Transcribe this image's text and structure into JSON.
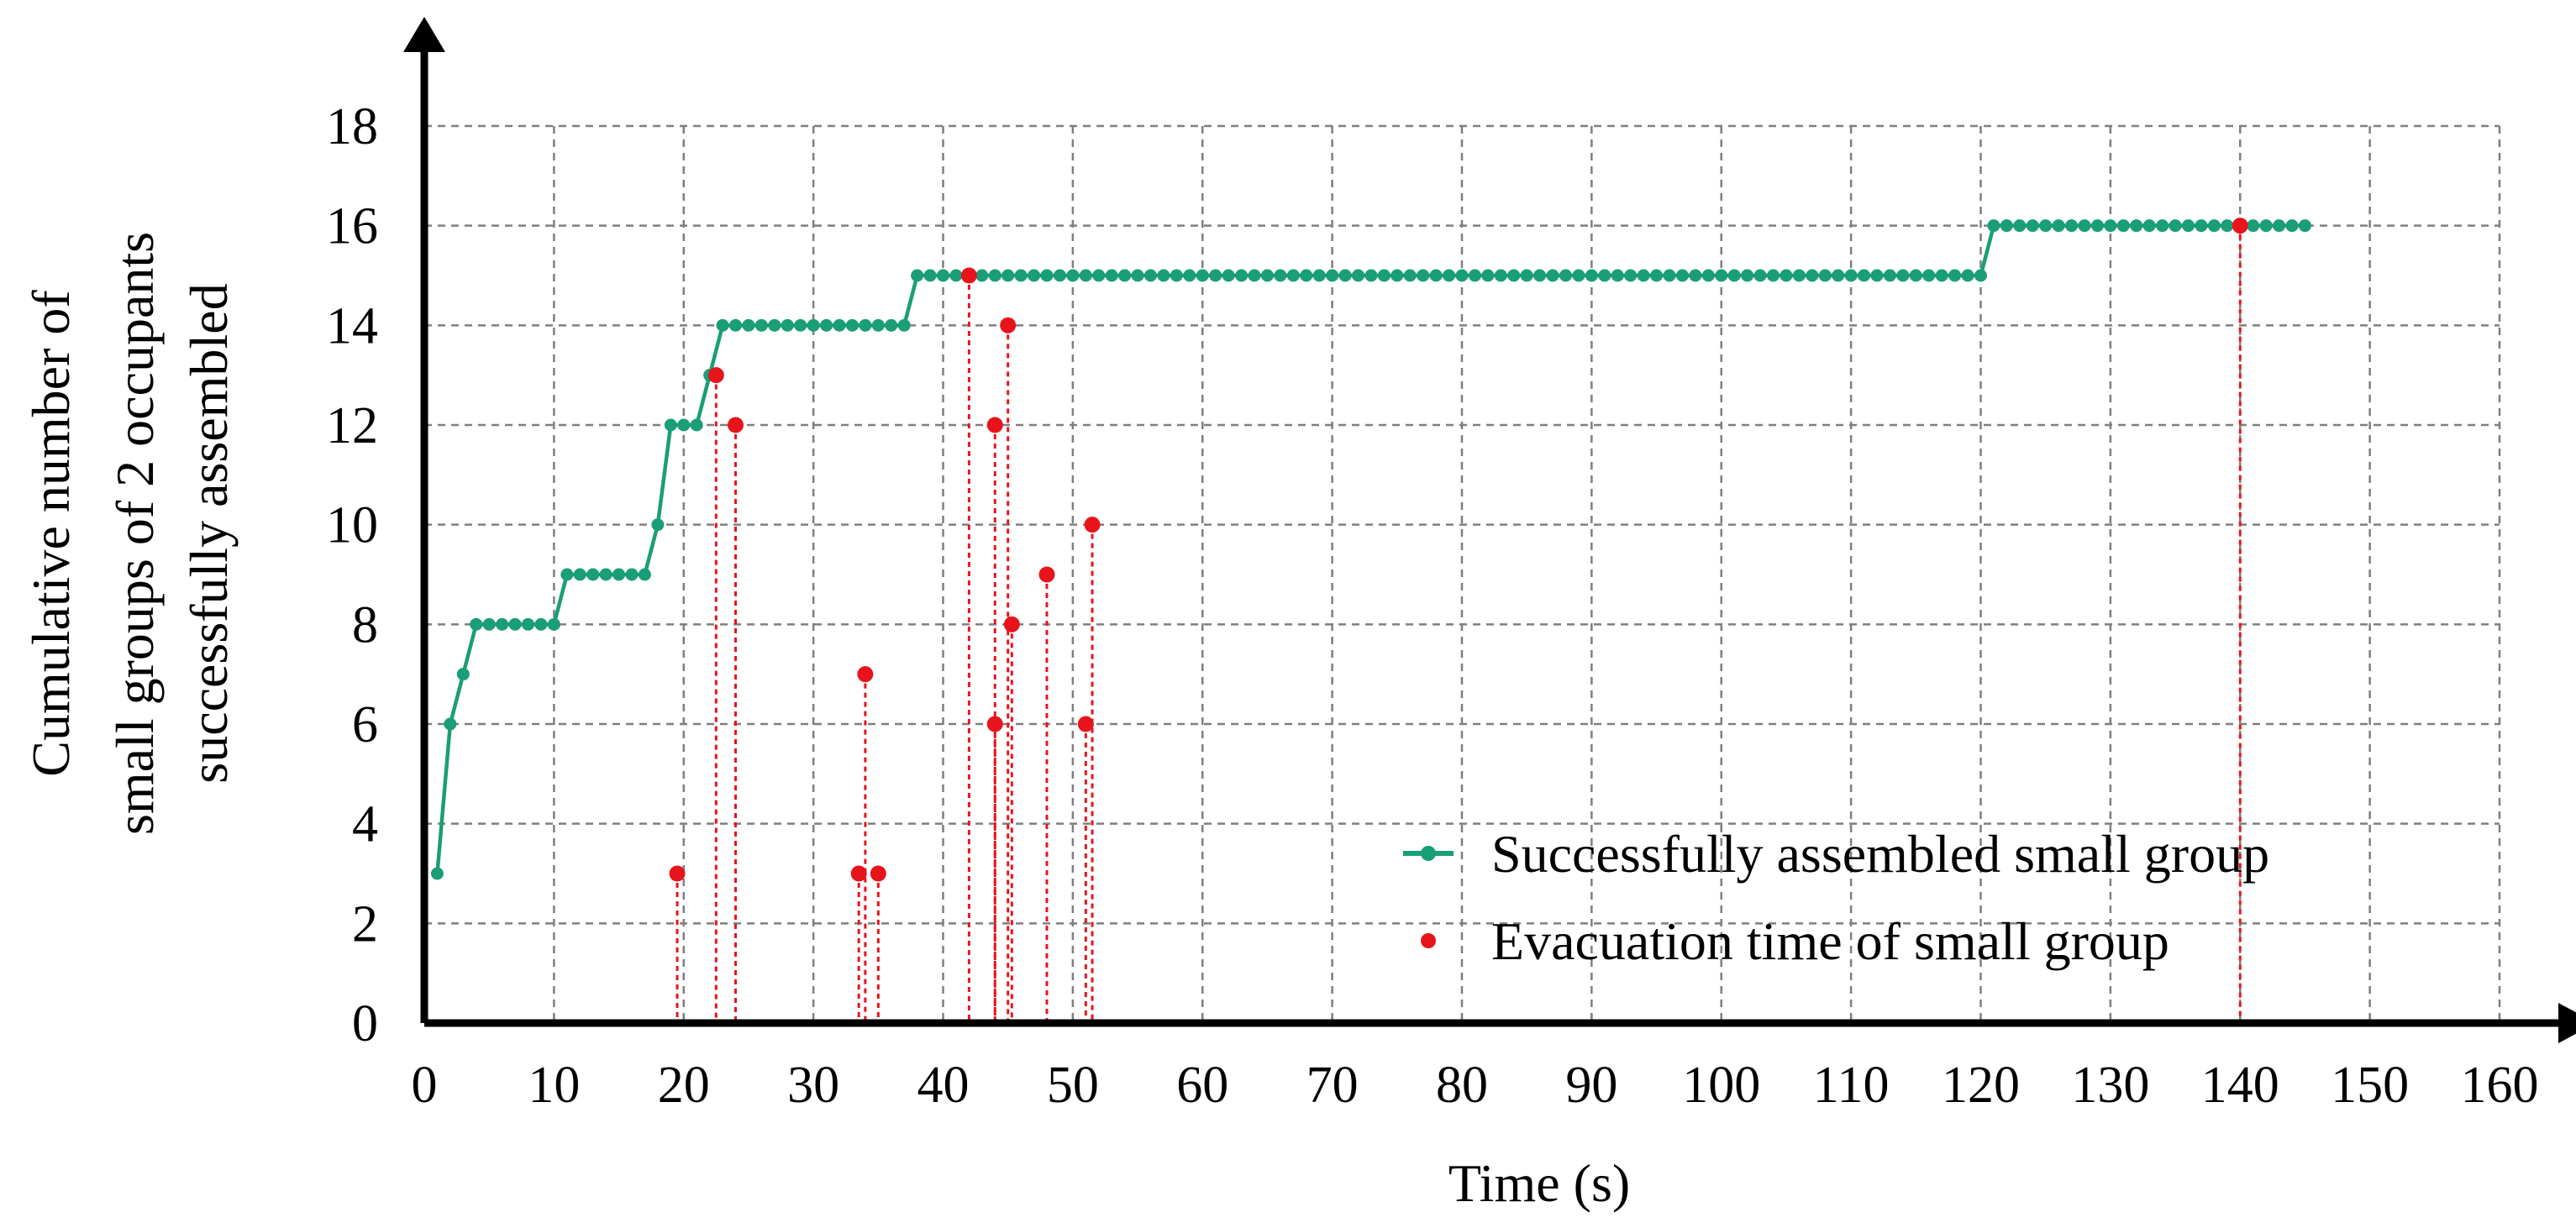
{
  "chart_data": {
    "type": "line",
    "title": "",
    "xlabel": "Time (s)",
    "ylabel_lines": [
      "Cumulative number of",
      "small groups of 2 occupants",
      "successfully assembled"
    ],
    "xlim": [
      0,
      160
    ],
    "ylim": [
      0,
      18
    ],
    "xticks": [
      0,
      10,
      20,
      30,
      40,
      50,
      60,
      70,
      80,
      90,
      100,
      110,
      120,
      130,
      140,
      150,
      160
    ],
    "yticks": [
      0,
      2,
      4,
      6,
      8,
      10,
      12,
      14,
      16,
      18
    ],
    "grid": true,
    "legend_position": "bottom-right",
    "colors": {
      "assembled": "#1a9e77",
      "evacuation": "#e8141c",
      "axis": "#000000",
      "grid": "#7f7f7f"
    },
    "series": [
      {
        "name": "Successfully assembled small group",
        "kind": "step-line-markers",
        "x": [
          1,
          2,
          3,
          4,
          5,
          6,
          7,
          8,
          9,
          10,
          11,
          12,
          13,
          14,
          15,
          16,
          17,
          18,
          19,
          20,
          21,
          22,
          23,
          24,
          25,
          26,
          27,
          28,
          29,
          30,
          31,
          32,
          33,
          34,
          35,
          36,
          37,
          38,
          39,
          40,
          41,
          42,
          43,
          44,
          45,
          46,
          47,
          48,
          49,
          50,
          51,
          52,
          53,
          54,
          55,
          56,
          57,
          58,
          59,
          60,
          61,
          62,
          63,
          64,
          65,
          66,
          67,
          68,
          69,
          70,
          71,
          72,
          73,
          74,
          75,
          76,
          77,
          78,
          79,
          80,
          81,
          82,
          83,
          84,
          85,
          86,
          87,
          88,
          89,
          90,
          91,
          92,
          93,
          94,
          95,
          96,
          97,
          98,
          99,
          100,
          101,
          102,
          103,
          104,
          105,
          106,
          107,
          108,
          109,
          110,
          111,
          112,
          113,
          114,
          115,
          116,
          117,
          118,
          119,
          120,
          121,
          122,
          123,
          124,
          125,
          126,
          127,
          128,
          129,
          130,
          131,
          132,
          133,
          134,
          135,
          136,
          137,
          138,
          139,
          140,
          141,
          142,
          143,
          144,
          145
        ],
        "y": [
          3,
          6,
          7,
          8,
          8,
          8,
          8,
          8,
          8,
          8,
          9,
          9,
          9,
          9,
          9,
          9,
          9,
          10,
          12,
          12,
          12,
          13,
          14,
          14,
          14,
          14,
          14,
          14,
          14,
          14,
          14,
          14,
          14,
          14,
          14,
          14,
          14,
          15,
          15,
          15,
          15,
          15,
          15,
          15,
          15,
          15,
          15,
          15,
          15,
          15,
          15,
          15,
          15,
          15,
          15,
          15,
          15,
          15,
          15,
          15,
          15,
          15,
          15,
          15,
          15,
          15,
          15,
          15,
          15,
          15,
          15,
          15,
          15,
          15,
          15,
          15,
          15,
          15,
          15,
          15,
          15,
          15,
          15,
          15,
          15,
          15,
          15,
          15,
          15,
          15,
          15,
          15,
          15,
          15,
          15,
          15,
          15,
          15,
          15,
          15,
          15,
          15,
          15,
          15,
          15,
          15,
          15,
          15,
          15,
          15,
          15,
          15,
          15,
          15,
          15,
          15,
          15,
          15,
          15,
          15,
          16,
          16,
          16,
          16,
          16,
          16,
          16,
          16,
          16,
          16,
          16,
          16,
          16,
          16,
          16,
          16,
          16,
          16,
          16,
          16,
          16,
          16,
          16,
          16,
          16
        ]
      },
      {
        "name": "Evacuation time of small group",
        "kind": "scatter-with-droplines",
        "points": [
          {
            "x": 19.5,
            "y": 3
          },
          {
            "x": 22.5,
            "y": 13
          },
          {
            "x": 24,
            "y": 12
          },
          {
            "x": 33.5,
            "y": 3
          },
          {
            "x": 34,
            "y": 7
          },
          {
            "x": 35,
            "y": 3
          },
          {
            "x": 42,
            "y": 15
          },
          {
            "x": 44,
            "y": 12
          },
          {
            "x": 44,
            "y": 6
          },
          {
            "x": 45,
            "y": 14
          },
          {
            "x": 45.3,
            "y": 8
          },
          {
            "x": 48,
            "y": 9
          },
          {
            "x": 51,
            "y": 6
          },
          {
            "x": 51.5,
            "y": 10
          },
          {
            "x": 140,
            "y": 16
          }
        ]
      }
    ]
  }
}
